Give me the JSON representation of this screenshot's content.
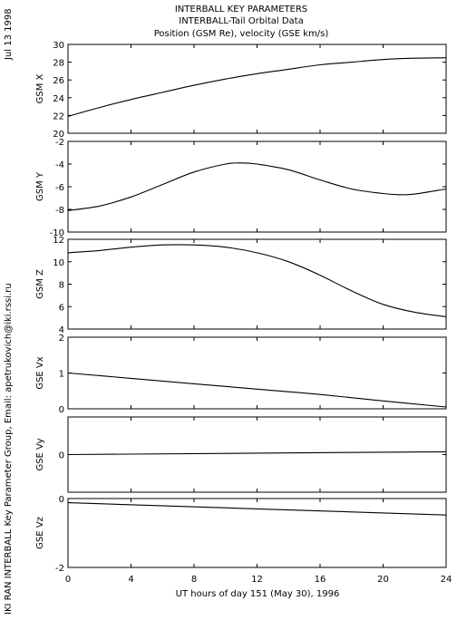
{
  "header": {
    "date": "Jul 13 1998",
    "title_lines": [
      "INTERBALL KEY PARAMETERS",
      "INTERBALL-Tail Orbital Data",
      "Position (GSM Re), velocity (GSE km/s)"
    ],
    "credit": "IKI RAN INTERBALL Key Parameter Group, Email: apetrukovich@iki.rssi.ru"
  },
  "chart_data": [
    {
      "type": "line",
      "ylabel": "GSM X",
      "ylim": [
        20,
        30
      ],
      "yticks": [
        "20",
        "22",
        "24",
        "26",
        "28",
        "30"
      ],
      "series": [
        {
          "x": [
            0,
            2,
            4,
            6,
            8,
            10,
            12,
            14,
            16,
            18,
            20,
            22,
            24
          ],
          "values": [
            21.9,
            22.9,
            23.8,
            24.6,
            25.4,
            26.1,
            26.7,
            27.2,
            27.7,
            28.0,
            28.3,
            28.45,
            28.5
          ]
        }
      ]
    },
    {
      "type": "line",
      "ylabel": "GSM Y",
      "ylim": [
        -10,
        -2
      ],
      "yticks": [
        "-10",
        "-8",
        "-6",
        "-4",
        "-2"
      ],
      "series": [
        {
          "x": [
            0,
            2,
            4,
            6,
            8,
            10,
            11,
            12,
            14,
            16,
            18,
            20,
            21,
            22,
            24
          ],
          "values": [
            -8.1,
            -7.7,
            -6.9,
            -5.8,
            -4.7,
            -4.0,
            -3.9,
            -4.0,
            -4.5,
            -5.4,
            -6.2,
            -6.6,
            -6.7,
            -6.65,
            -6.2
          ]
        }
      ]
    },
    {
      "type": "line",
      "ylabel": "GSM Z",
      "ylim": [
        4,
        12
      ],
      "yticks": [
        "4",
        "6",
        "8",
        "10",
        "12"
      ],
      "series": [
        {
          "x": [
            0,
            2,
            4,
            6,
            8,
            10,
            12,
            14,
            16,
            18,
            20,
            22,
            24
          ],
          "values": [
            10.8,
            11.0,
            11.3,
            11.5,
            11.5,
            11.3,
            10.8,
            10.0,
            8.8,
            7.4,
            6.2,
            5.5,
            5.1
          ]
        }
      ]
    },
    {
      "type": "line",
      "ylabel": "GSE Vx",
      "ylim": [
        0,
        2
      ],
      "yticks": [
        "0",
        "1",
        "2"
      ],
      "series": [
        {
          "x": [
            0,
            4,
            8,
            12,
            16,
            20,
            24
          ],
          "values": [
            1.0,
            0.85,
            0.7,
            0.55,
            0.4,
            0.22,
            0.05
          ]
        }
      ]
    },
    {
      "type": "line",
      "ylabel": "GSE Vy",
      "ylim": [
        -2,
        2
      ],
      "yticks": [
        "0"
      ],
      "series": [
        {
          "x": [
            0,
            24
          ],
          "values": [
            0.0,
            0.15
          ]
        }
      ]
    },
    {
      "type": "line",
      "ylabel": "GSE Vz",
      "ylim": [
        -2,
        0
      ],
      "yticks": [
        "-2",
        "0"
      ],
      "series": [
        {
          "x": [
            0,
            24
          ],
          "values": [
            -0.12,
            -0.48
          ]
        }
      ]
    }
  ],
  "xaxis": {
    "label": "UT hours of day 151 (May 30), 1996",
    "xlim": [
      0,
      24
    ],
    "ticks": [
      "0",
      "4",
      "8",
      "12",
      "16",
      "20",
      "24"
    ]
  }
}
